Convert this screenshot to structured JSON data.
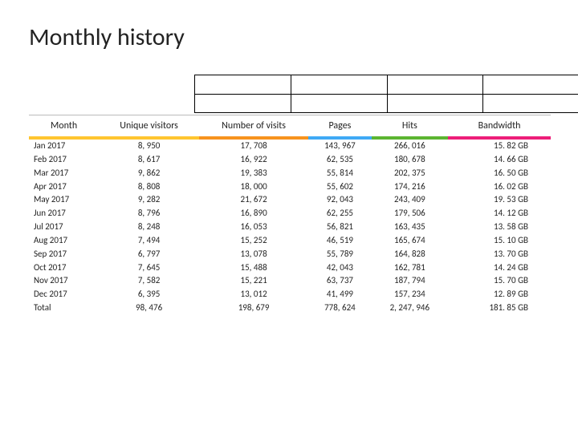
{
  "title": "Monthly history",
  "columns": [
    "Month",
    "Unique visitors",
    "Number of visits",
    "Pages",
    "Hits",
    "Bandwidth"
  ],
  "header_accent_colors": [
    "#ffc52f",
    "#ffc52f",
    "#f7931e",
    "#3fa9f5",
    "#5cb531",
    "#ed1e79"
  ],
  "rows": [
    {
      "month": "Jan 2017",
      "uv": "8, 950",
      "visits": "17, 708",
      "pages": "143, 967",
      "hits": "266, 016",
      "bw": "15. 82 GB"
    },
    {
      "month": "Feb 2017",
      "uv": "8, 617",
      "visits": "16, 922",
      "pages": "62, 535",
      "hits": "180, 678",
      "bw": "14. 66 GB"
    },
    {
      "month": "Mar 2017",
      "uv": "9, 862",
      "visits": "19, 383",
      "pages": "55, 814",
      "hits": "202, 375",
      "bw": "16. 50 GB"
    },
    {
      "month": "Apr 2017",
      "uv": "8, 808",
      "visits": "18, 000",
      "pages": "55, 602",
      "hits": "174, 216",
      "bw": "16. 02 GB"
    },
    {
      "month": "May 2017",
      "uv": "9, 282",
      "visits": "21, 672",
      "pages": "92, 043",
      "hits": "243, 409",
      "bw": "19. 53 GB"
    },
    {
      "month": "Jun 2017",
      "uv": "8, 796",
      "visits": "16, 890",
      "pages": "62, 255",
      "hits": "179, 506",
      "bw": "14. 12 GB"
    },
    {
      "month": "Jul 2017",
      "uv": "8, 248",
      "visits": "16, 053",
      "pages": "56, 821",
      "hits": "163, 435",
      "bw": "13. 58 GB"
    },
    {
      "month": "Aug 2017",
      "uv": "7, 494",
      "visits": "15, 252",
      "pages": "46, 519",
      "hits": "165, 674",
      "bw": "15. 10 GB"
    },
    {
      "month": "Sep 2017",
      "uv": "6, 797",
      "visits": "13, 078",
      "pages": "55, 789",
      "hits": "164, 828",
      "bw": "13. 70 GB"
    },
    {
      "month": "Oct 2017",
      "uv": "7, 645",
      "visits": "15, 488",
      "pages": "42, 043",
      "hits": "162, 781",
      "bw": "14. 24 GB"
    },
    {
      "month": "Nov 2017",
      "uv": "7, 582",
      "visits": "15, 221",
      "pages": "63, 737",
      "hits": "187, 794",
      "bw": "15. 70 GB"
    },
    {
      "month": "Dec 2017",
      "uv": "6, 395",
      "visits": "13, 012",
      "pages": "41, 499",
      "hits": "157, 234",
      "bw": "12. 89 GB"
    },
    {
      "month": "Total",
      "uv": "98, 476",
      "visits": "198, 679",
      "pages": "778, 624",
      "hits": "2, 247, 946",
      "bw": "181. 85 GB"
    }
  ],
  "chart": {
    "cols": 4,
    "grid": true
  }
}
